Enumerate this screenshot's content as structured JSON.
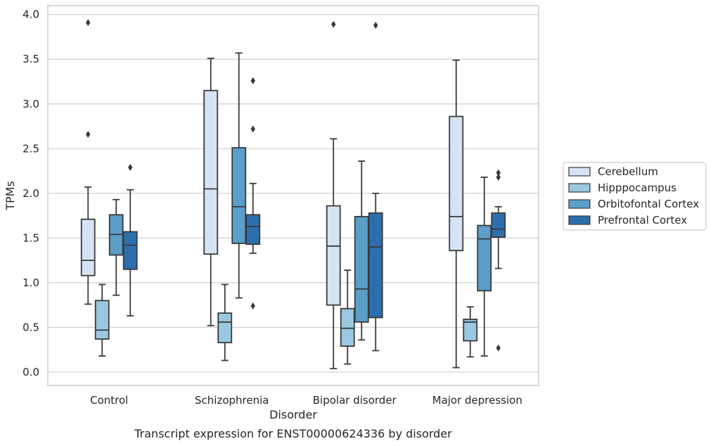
{
  "caption": "Transcript expression for ENST00000624336 by disorder",
  "chart_data": {
    "type": "box",
    "title": "",
    "xlabel": "Disorder",
    "ylabel": "TPMs",
    "ylim": [
      -0.15,
      4.1
    ],
    "yticks": [
      0.0,
      0.5,
      1.0,
      1.5,
      2.0,
      2.5,
      3.0,
      3.5,
      4.0
    ],
    "ytick_labels": [
      "0.0",
      "0.5",
      "1.0",
      "1.5",
      "2.0",
      "2.5",
      "3.0",
      "3.5",
      "4.0"
    ],
    "grid": true,
    "legend_position": "right",
    "categories": [
      "Control",
      "Schizophrenia",
      "Bipolar disorder",
      "Major depression"
    ],
    "series": [
      {
        "name": "Cerebellum",
        "color": "#d4e4f4",
        "boxes": [
          {
            "whisker_low": 0.76,
            "q1": 1.08,
            "median": 1.25,
            "q3": 1.71,
            "whisker_high": 2.07,
            "outliers": [
              2.66,
              3.91
            ]
          },
          {
            "whisker_low": 0.52,
            "q1": 1.32,
            "median": 2.05,
            "q3": 3.15,
            "whisker_high": 3.51,
            "outliers": []
          },
          {
            "whisker_low": 0.04,
            "q1": 0.75,
            "median": 1.41,
            "q3": 1.86,
            "whisker_high": 2.61,
            "outliers": [
              3.89
            ]
          },
          {
            "whisker_low": 0.05,
            "q1": 1.36,
            "median": 1.74,
            "q3": 2.86,
            "whisker_high": 3.49,
            "outliers": []
          }
        ]
      },
      {
        "name": "Hipppocampus",
        "color": "#9ac8e0",
        "boxes": [
          {
            "whisker_low": 0.18,
            "q1": 0.37,
            "median": 0.47,
            "q3": 0.8,
            "whisker_high": 0.98,
            "outliers": []
          },
          {
            "whisker_low": 0.13,
            "q1": 0.33,
            "median": 0.56,
            "q3": 0.66,
            "whisker_high": 0.98,
            "outliers": []
          },
          {
            "whisker_low": 0.09,
            "q1": 0.29,
            "median": 0.49,
            "q3": 0.71,
            "whisker_high": 1.14,
            "outliers": []
          },
          {
            "whisker_low": 0.17,
            "q1": 0.35,
            "median": 0.56,
            "q3": 0.59,
            "whisker_high": 0.73,
            "outliers": []
          }
        ]
      },
      {
        "name": "Orbitofontal Cortex",
        "color": "#5a9ec9",
        "boxes": [
          {
            "whisker_low": 0.86,
            "q1": 1.31,
            "median": 1.54,
            "q3": 1.76,
            "whisker_high": 1.93,
            "outliers": []
          },
          {
            "whisker_low": 0.83,
            "q1": 1.44,
            "median": 1.85,
            "q3": 2.51,
            "whisker_high": 3.57,
            "outliers": []
          },
          {
            "whisker_low": 0.36,
            "q1": 0.56,
            "median": 0.93,
            "q3": 1.74,
            "whisker_high": 2.36,
            "outliers": []
          },
          {
            "whisker_low": 0.18,
            "q1": 0.91,
            "median": 1.49,
            "q3": 1.64,
            "whisker_high": 2.18,
            "outliers": []
          }
        ]
      },
      {
        "name": "Prefrontal Cortex",
        "color": "#2d6fad",
        "boxes": [
          {
            "whisker_low": 0.63,
            "q1": 1.15,
            "median": 1.42,
            "q3": 1.57,
            "whisker_high": 2.04,
            "outliers": [
              2.29
            ]
          },
          {
            "whisker_low": 1.33,
            "q1": 1.43,
            "median": 1.63,
            "q3": 1.76,
            "whisker_high": 2.11,
            "outliers": [
              0.74,
              2.72,
              3.26
            ]
          },
          {
            "whisker_low": 0.24,
            "q1": 0.61,
            "median": 1.4,
            "q3": 1.78,
            "whisker_high": 2.0,
            "outliers": [
              3.88
            ]
          },
          {
            "whisker_low": 1.16,
            "q1": 1.51,
            "median": 1.6,
            "q3": 1.78,
            "whisker_high": 1.85,
            "outliers": [
              0.27,
              2.18,
              2.23
            ]
          }
        ]
      }
    ]
  }
}
